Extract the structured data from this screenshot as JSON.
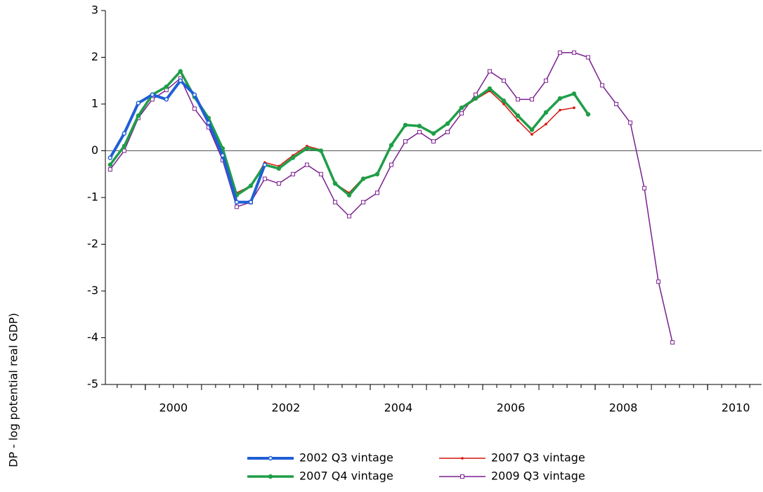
{
  "chart_data": {
    "type": "line",
    "y_label": "DP - log potential real GDP)",
    "x": [
      1999.375,
      1999.625,
      1999.875,
      2000.125,
      2000.375,
      2000.625,
      2000.875,
      2001.125,
      2001.375,
      2001.625,
      2001.875,
      2002.125,
      2002.375,
      2002.625,
      2002.875,
      2003.125,
      2003.375,
      2003.625,
      2003.875,
      2004.125,
      2004.375,
      2004.625,
      2004.875,
      2005.125,
      2005.375,
      2005.625,
      2005.875,
      2006.125,
      2006.375,
      2006.625,
      2006.875,
      2007.125,
      2007.375,
      2007.625,
      2007.875,
      2008.125,
      2008.375,
      2008.625,
      2008.875,
      2009.125,
      2009.375
    ],
    "series": [
      {
        "name": "2009 Q3 vintage",
        "color": "#7b1f8f",
        "marker": "square",
        "width": 1.5,
        "values": [
          -0.4,
          0.0,
          0.7,
          1.1,
          1.3,
          1.55,
          0.9,
          0.5,
          -0.2,
          -1.2,
          -1.1,
          -0.6,
          -0.7,
          -0.5,
          -0.3,
          -0.5,
          -1.1,
          -1.4,
          -1.1,
          -0.9,
          -0.3,
          0.2,
          0.4,
          0.2,
          0.4,
          0.8,
          1.2,
          1.7,
          1.5,
          1.1,
          1.1,
          1.5,
          2.1,
          2.1,
          2.0,
          1.4,
          1.0,
          0.6,
          -0.8,
          -2.8,
          -4.1
        ]
      },
      {
        "name": "2007 Q3 vintage",
        "color": "#d4140c",
        "marker": "dot",
        "width": 1.5,
        "values": [
          -0.3,
          0.1,
          0.75,
          1.18,
          1.37,
          1.68,
          1.15,
          0.7,
          0.0,
          -0.9,
          -0.75,
          -0.25,
          -0.33,
          -0.1,
          0.1,
          0.02,
          -0.7,
          -0.9,
          -0.58,
          -0.5,
          0.12,
          0.55,
          0.52,
          0.37,
          0.58,
          0.9,
          1.1,
          1.28,
          1.0,
          0.65,
          0.35,
          0.57,
          0.87,
          0.92,
          null,
          null,
          null,
          null,
          null,
          null,
          null
        ]
      },
      {
        "name": "2007 Q4 vintage",
        "color": "#1f9e48",
        "marker": "circle",
        "width": 3.5,
        "values": [
          -0.3,
          0.1,
          0.75,
          1.2,
          1.37,
          1.7,
          1.15,
          0.7,
          0.05,
          -0.95,
          -0.75,
          -0.3,
          -0.38,
          -0.15,
          0.05,
          0.0,
          -0.7,
          -0.95,
          -0.6,
          -0.5,
          0.12,
          0.55,
          0.53,
          0.37,
          0.58,
          0.92,
          1.12,
          1.33,
          1.07,
          0.75,
          0.45,
          0.82,
          1.12,
          1.22,
          0.78,
          null,
          null,
          null,
          null,
          null,
          null
        ]
      },
      {
        "name": "2002 Q3 vintage",
        "color": "#1f5fd6",
        "marker": "hollow-circle",
        "width": 4,
        "values": [
          -0.15,
          0.37,
          1.02,
          1.2,
          1.1,
          1.5,
          1.2,
          0.6,
          -0.1,
          -1.1,
          -1.1,
          -0.3,
          null,
          null,
          null,
          null,
          null,
          null,
          null,
          null,
          null,
          null,
          null,
          null,
          null,
          null,
          null,
          null,
          null,
          null,
          null,
          null,
          null,
          null,
          null,
          null,
          null,
          null,
          null,
          null,
          null
        ]
      }
    ],
    "xlim": [
      1999.29,
      2010.96
    ],
    "xticks": [
      2000,
      2002,
      2004,
      2006,
      2008,
      2010
    ],
    "ylim": [
      -5,
      3
    ],
    "yticks": [
      -5,
      -4,
      -3,
      -2,
      -1,
      0,
      1,
      2,
      3
    ]
  }
}
